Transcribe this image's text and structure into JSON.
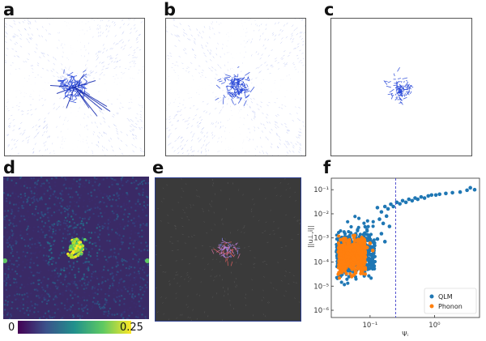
{
  "panels": {
    "a": {
      "label": "a"
    },
    "b": {
      "label": "b"
    },
    "c": {
      "label": "c"
    },
    "d": {
      "label": "d"
    },
    "e": {
      "label": "e"
    },
    "f": {
      "label": "f"
    }
  },
  "colorbar": {
    "min_label": "0",
    "max_label": "0.25",
    "colormap": "viridis",
    "colors": [
      "#440154",
      "#3b528b",
      "#21918c",
      "#5ec962",
      "#fde725"
    ]
  },
  "colors": {
    "displacement_blue": "#1f3fd6",
    "qlm": "#1f77b4",
    "phonon": "#ff7f0e",
    "threshold_line": "#4444cc",
    "map_background": "#3a2a66",
    "dark_panel": "#3a3a3a"
  },
  "chart_data": {
    "type": "scatter",
    "panel": "f",
    "xscale": "log",
    "yscale": "log",
    "xlim": [
      0.025,
      5
    ],
    "ylim": [
      5e-07,
      0.3
    ],
    "xlabel": "Ψᵢ",
    "ylabel": "||u⊥,i||",
    "xticks": [
      {
        "value": 0.1,
        "label": "10⁻¹"
      },
      {
        "value": 1,
        "label": "10⁰"
      }
    ],
    "yticks": [
      {
        "value": 1e-06,
        "label": "10⁻⁶"
      },
      {
        "value": 1e-05,
        "label": "10⁻⁵"
      },
      {
        "value": 0.0001,
        "label": "10⁻⁴"
      },
      {
        "value": 0.001,
        "label": "10⁻³"
      },
      {
        "value": 0.01,
        "label": "10⁻²"
      },
      {
        "value": 0.1,
        "label": "10⁻¹"
      }
    ],
    "threshold_x": 0.25,
    "legend_position": "bottom-right",
    "series": [
      {
        "name": "QLM",
        "color": "#1f77b4",
        "cloud": {
          "x_range": [
            0.03,
            0.12
          ],
          "log_y_center": -3.6,
          "log_y_spread": 0.85,
          "count": 520
        },
        "tail": [
          [
            0.13,
            0.018
          ],
          [
            0.15,
            0.012
          ],
          [
            0.17,
            0.02
          ],
          [
            0.19,
            0.016
          ],
          [
            0.21,
            0.025
          ],
          [
            0.23,
            0.02
          ],
          [
            0.26,
            0.03
          ],
          [
            0.29,
            0.026
          ],
          [
            0.32,
            0.035
          ],
          [
            0.36,
            0.03
          ],
          [
            0.4,
            0.04
          ],
          [
            0.45,
            0.035
          ],
          [
            0.5,
            0.045
          ],
          [
            0.55,
            0.04
          ],
          [
            0.62,
            0.05
          ],
          [
            0.7,
            0.045
          ],
          [
            0.8,
            0.055
          ],
          [
            0.9,
            0.06
          ],
          [
            1.05,
            0.06
          ],
          [
            1.2,
            0.065
          ],
          [
            1.5,
            0.07
          ],
          [
            1.9,
            0.075
          ],
          [
            2.5,
            0.08
          ],
          [
            3.2,
            0.095
          ],
          [
            3.6,
            0.12
          ],
          [
            4.2,
            0.1
          ],
          [
            0.14,
            0.006
          ],
          [
            0.16,
            0.004
          ],
          [
            0.18,
            0.008
          ],
          [
            0.2,
            0.003
          ],
          [
            0.13,
            0.0009
          ],
          [
            0.15,
            0.0015
          ],
          [
            0.17,
            0.0007
          ]
        ]
      },
      {
        "name": "Phonon",
        "color": "#ff7f0e",
        "cloud": {
          "x_range": [
            0.032,
            0.085
          ],
          "log_y_center": -3.75,
          "log_y_spread": 0.55,
          "count": 700
        },
        "tail": [
          [
            0.09,
            0.0004
          ],
          [
            0.1,
            0.0006
          ],
          [
            0.11,
            0.0003
          ]
        ]
      }
    ]
  }
}
